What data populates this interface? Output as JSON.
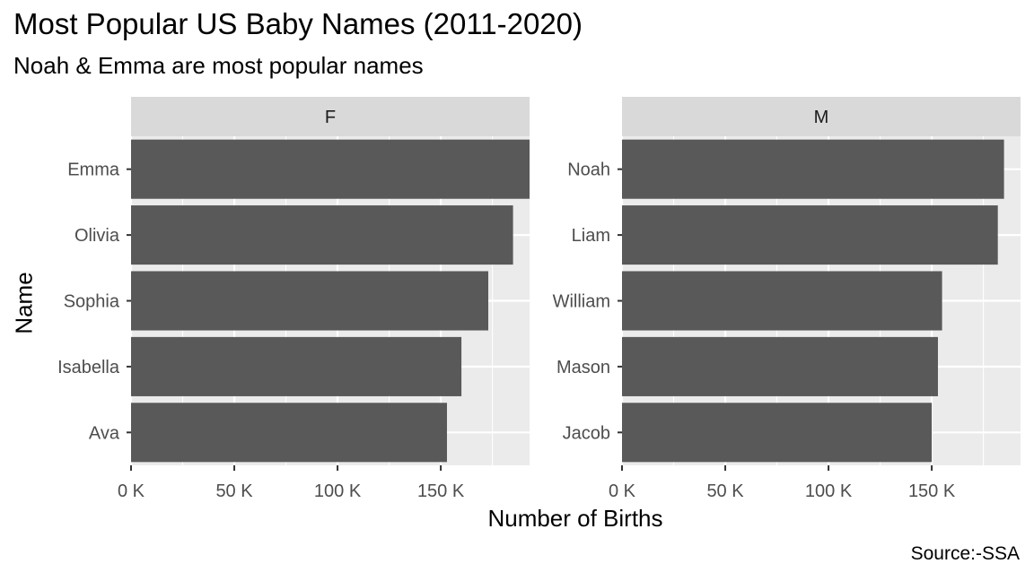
{
  "chart_data": {
    "type": "bar",
    "orientation": "horizontal",
    "title": "Most Popular US Baby Names (2011-2020)",
    "subtitle": "Noah & Emma are most popular names",
    "caption": "Source:-SSA",
    "xlabel": "Number of Births",
    "ylabel": "Name",
    "xlim": [
      0,
      193000
    ],
    "x_ticks": [
      0,
      50000,
      100000,
      150000
    ],
    "x_tick_labels": [
      "0 K",
      "50 K",
      "100 K",
      "150 K"
    ],
    "grid": true,
    "facets": [
      {
        "label": "F",
        "categories": [
          "Emma",
          "Olivia",
          "Sophia",
          "Isabella",
          "Ava"
        ],
        "values": [
          193000,
          185000,
          173000,
          160000,
          153000
        ]
      },
      {
        "label": "M",
        "categories": [
          "Noah",
          "Liam",
          "William",
          "Mason",
          "Jacob"
        ],
        "values": [
          185000,
          182000,
          155000,
          153000,
          150000
        ]
      }
    ],
    "colors": {
      "bar": "#595959",
      "panel": "#ebebeb",
      "strip": "#d9d9d9",
      "grid": "#ffffff"
    }
  }
}
